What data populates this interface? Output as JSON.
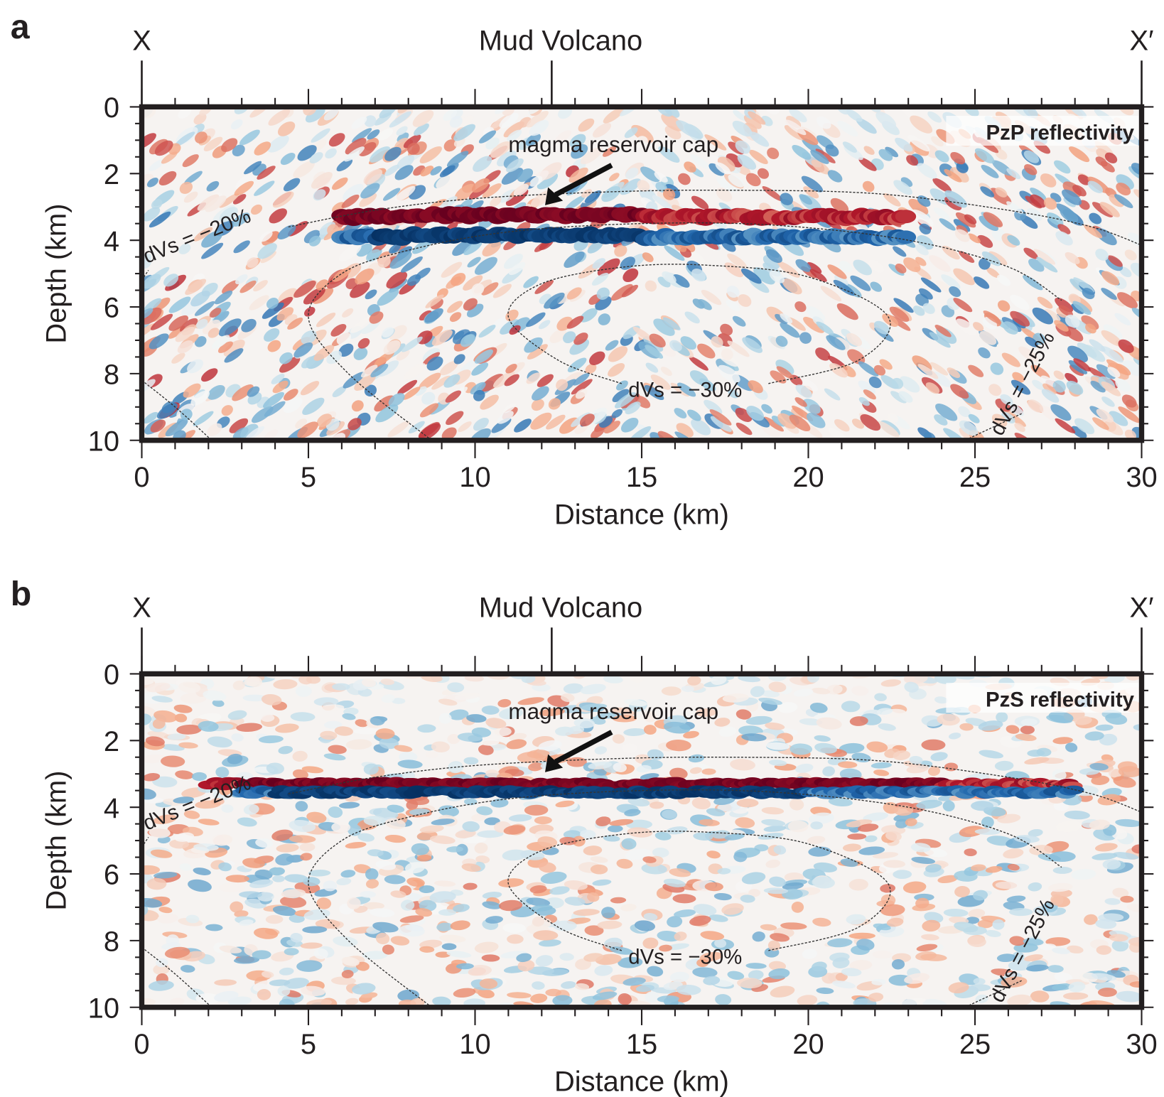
{
  "colors": {
    "colormap": "RdBu",
    "positive": "#67001f",
    "negative": "#053061",
    "frame": "#231f20"
  },
  "chart_data": [
    {
      "type": "heatmap",
      "panel_label": "a",
      "corner_label": "PzP reflectivity",
      "xlabel": "Distance (km)",
      "ylabel": "Depth (km)",
      "xlim": [
        0,
        30
      ],
      "ylim": [
        10,
        0
      ],
      "x_ticks": [
        "0",
        "5",
        "10",
        "15",
        "20",
        "25",
        "30"
      ],
      "y_ticks": [
        "0",
        "2",
        "4",
        "6",
        "8",
        "10"
      ],
      "profile_labels": {
        "start": "X",
        "end": "X′",
        "feature": "Mud Volcano",
        "feature_distance_km": 12.3
      },
      "annotation": {
        "text": "magma reservoir cap",
        "arrow_tip": [
          12.1,
          2.95
        ]
      },
      "contours": [
        {
          "label": "dVs = −20%",
          "value": -20
        },
        {
          "label": "dVs = −25%",
          "value": -25
        },
        {
          "label": "dVs = −30%",
          "value": -30
        }
      ],
      "reflectors": [
        {
          "polarity": "positive",
          "depth_km": 3.3,
          "x_range": [
            6,
            23
          ],
          "strongest_range": [
            6,
            15
          ]
        },
        {
          "polarity": "negative",
          "depth_km": 3.9,
          "x_range": [
            6,
            23
          ],
          "strongest_range": [
            7,
            15
          ]
        }
      ]
    },
    {
      "type": "heatmap",
      "panel_label": "b",
      "corner_label": "PzS reflectivity",
      "xlabel": "Distance (km)",
      "ylabel": "Depth (km)",
      "xlim": [
        0,
        30
      ],
      "ylim": [
        10,
        0
      ],
      "x_ticks": [
        "0",
        "5",
        "10",
        "15",
        "20",
        "25",
        "30"
      ],
      "y_ticks": [
        "0",
        "2",
        "4",
        "6",
        "8",
        "10"
      ],
      "profile_labels": {
        "start": "X",
        "end": "X′",
        "feature": "Mud Volcano",
        "feature_distance_km": 12.3
      },
      "annotation": {
        "text": "magma reservoir cap",
        "arrow_tip": [
          12.1,
          2.95
        ]
      },
      "contours": [
        {
          "label": "dVs = −20%",
          "value": -20
        },
        {
          "label": "dVs = −25%",
          "value": -25
        },
        {
          "label": "dVs = −30%",
          "value": -30
        }
      ],
      "reflectors": [
        {
          "polarity": "positive",
          "depth_km": 3.3,
          "x_range": [
            2,
            28
          ],
          "strongest_range": [
            3,
            24
          ]
        },
        {
          "polarity": "negative",
          "depth_km": 3.55,
          "x_range": [
            3,
            28
          ],
          "strongest_range": [
            4,
            20
          ]
        }
      ]
    }
  ]
}
